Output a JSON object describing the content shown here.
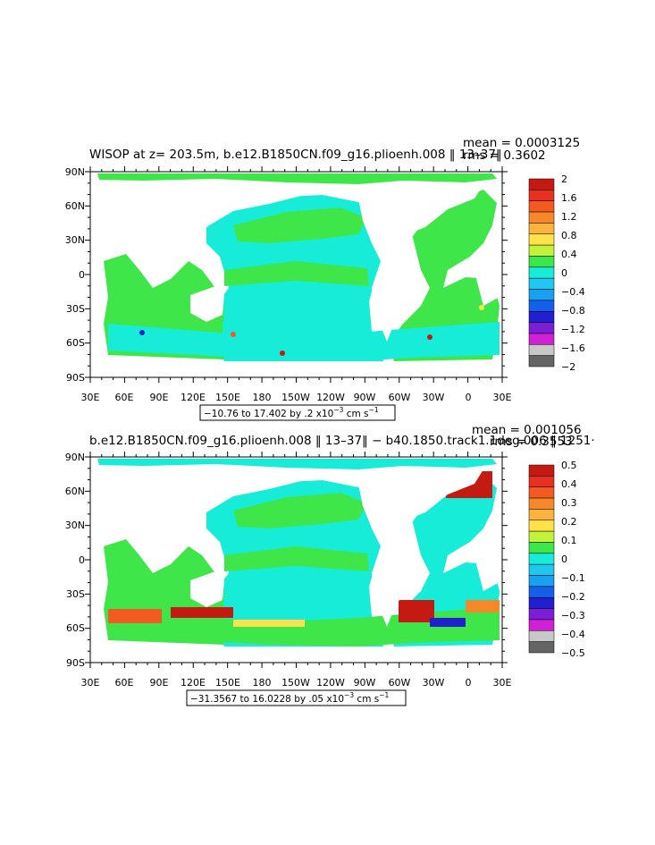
{
  "colors": {
    "ocean_green": "#3fe64a",
    "ocean_cyan": "#16ecd8",
    "land": "#ffffff"
  },
  "panels": [
    {
      "title": "WISOP  at z=  203.5m, b.e12.B1850CN.f09_g16.plioenh.008 ‖ 13–37‖",
      "stats": {
        "mean": "mean =  0.0003125",
        "rms": "rms = 0.3602"
      },
      "range_note": {
        "text": "−10.76 to 17.402 by .2 x10",
        "exp": "−3",
        "unit": " cm s",
        "unit_exp": "−1"
      },
      "colorbar": {
        "labels": [
          "2",
          "1.6",
          "1.2",
          "0.8",
          "0.4",
          "0",
          "−0.4",
          "−0.8",
          "−1.2",
          "−1.6",
          "−2"
        ],
        "colors": [
          "#c41a12",
          "#e83020",
          "#f25a21",
          "#f7882a",
          "#fbb340",
          "#ffe24b",
          "#c2f23a",
          "#3fe64a",
          "#16ecd8",
          "#1ec8f0",
          "#19a0ee",
          "#1560e8",
          "#2020d0",
          "#7a1fd6",
          "#d21fd8",
          "#c8c8c8",
          "#646464"
        ]
      }
    },
    {
      "title": "b.e12.B1850CN.f09_g16.plioenh.008 ‖ 13–37‖ − b40.1850.track1.1deg.006 ‖ 1251·",
      "stats": {
        "mean": "mean =  0.001056",
        "rms": "rms = 0.3553"
      },
      "range_note": {
        "text": "−31.3567 to 16.0228 by .05 x10",
        "exp": "−3",
        "unit": " cm s",
        "unit_exp": "−1"
      },
      "colorbar": {
        "labels": [
          "0.5",
          "0.4",
          "0.3",
          "0.2",
          "0.1",
          "0",
          "−0.1",
          "−0.2",
          "−0.3",
          "−0.4",
          "−0.5"
        ],
        "colors": [
          "#c41a12",
          "#e83020",
          "#f25a21",
          "#f7882a",
          "#fbb340",
          "#ffe24b",
          "#c2f23a",
          "#3fe64a",
          "#16ecd8",
          "#1ec8f0",
          "#19a0ee",
          "#1560e8",
          "#2020d0",
          "#7a1fd6",
          "#d21fd8",
          "#c8c8c8",
          "#646464"
        ]
      }
    }
  ],
  "axes": {
    "lat_labels": [
      "90N",
      "60N",
      "30N",
      "0",
      "30S",
      "60S",
      "90S"
    ],
    "lon_labels": [
      "30E",
      "60E",
      "90E",
      "120E",
      "150E",
      "180",
      "150W",
      "120W",
      "90W",
      "60W",
      "30W",
      "0",
      "30E"
    ]
  },
  "chart_data": [
    {
      "type": "heatmap",
      "title": "WISOP  at z=  203.5m, b.e12.B1850CN.f09_g16.plioenh.008 ‖ 13–37‖",
      "xlabel": "",
      "ylabel": "",
      "xlim": [
        30,
        390
      ],
      "ylim": [
        -90,
        90
      ],
      "x_ticks": [
        "30E",
        "60E",
        "90E",
        "120E",
        "150E",
        "180",
        "150W",
        "120W",
        "90W",
        "60W",
        "30W",
        "0",
        "30E"
      ],
      "y_ticks": [
        "90N",
        "60N",
        "30N",
        "0",
        "30S",
        "60S",
        "90S"
      ],
      "colorbar_levels": [
        -2,
        -1.6,
        -1.2,
        -0.8,
        -0.4,
        0,
        0.4,
        0.8,
        1.2,
        1.6,
        2
      ],
      "mean": 0.0003125,
      "rms": 0.3602,
      "data_min": -10.76,
      "data_max": 17.402,
      "contour_interval": 0.2,
      "units": "x10^-3 cm s^-1"
    },
    {
      "type": "heatmap",
      "title": "b.e12.B1850CN.f09_g16.plioenh.008 ‖ 13–37‖ − b40.1850.track1.1deg.006 ‖ 1251·",
      "xlabel": "",
      "ylabel": "",
      "xlim": [
        30,
        390
      ],
      "ylim": [
        -90,
        90
      ],
      "x_ticks": [
        "30E",
        "60E",
        "90E",
        "120E",
        "150E",
        "180",
        "150W",
        "120W",
        "90W",
        "60W",
        "30W",
        "0",
        "30E"
      ],
      "y_ticks": [
        "90N",
        "60N",
        "30N",
        "0",
        "30S",
        "60S",
        "90S"
      ],
      "colorbar_levels": [
        -0.5,
        -0.4,
        -0.3,
        -0.2,
        -0.1,
        0,
        0.1,
        0.2,
        0.3,
        0.4,
        0.5
      ],
      "mean": 0.001056,
      "rms": 0.3553,
      "data_min": -31.3567,
      "data_max": 16.0228,
      "contour_interval": 0.05,
      "units": "x10^-3 cm s^-1"
    }
  ]
}
